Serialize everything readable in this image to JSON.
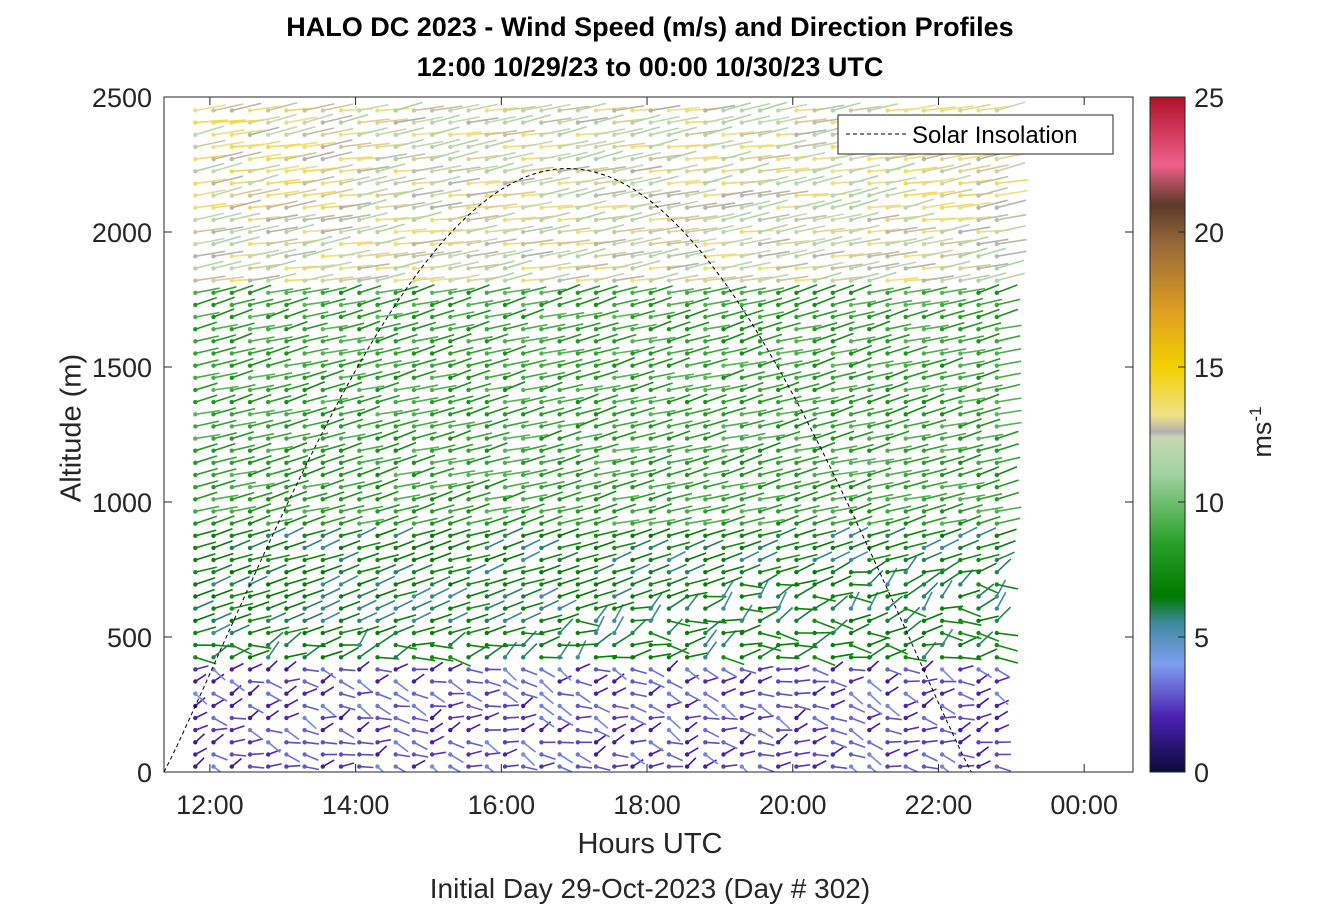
{
  "chart_data": {
    "type": "wind-barb-profile",
    "title_line1": "HALO DC 2023 - Wind Speed (m/s) and Direction Profiles",
    "title_line2": "12:00 10/29/23 to 00:00 10/30/23  UTC",
    "xlabel": "Hours UTC",
    "xsublabel": "Initial Day 29-Oct-2023 (Day # 302)",
    "ylabel": "Altitude (m)",
    "colorbar_label": "ms",
    "colorbar_label_exp": "-1",
    "x_ticks": [
      {
        "hour": 12,
        "label": "12:00"
      },
      {
        "hour": 14,
        "label": "14:00"
      },
      {
        "hour": 16,
        "label": "16:00"
      },
      {
        "hour": 18,
        "label": "18:00"
      },
      {
        "hour": 20,
        "label": "20:00"
      },
      {
        "hour": 22,
        "label": "22:00"
      },
      {
        "hour": 24,
        "label": "00:00"
      }
    ],
    "xlim_hours": [
      11.37,
      24.67
    ],
    "y_ticks": [
      0,
      500,
      1000,
      1500,
      2000,
      2500
    ],
    "ylim": [
      0,
      2500
    ],
    "colorbar_ticks": [
      0,
      5,
      10,
      15,
      20,
      25
    ],
    "colorbar_range": [
      0,
      25
    ],
    "colormap": [
      {
        "v": 0,
        "color": "#0b0b3a"
      },
      {
        "v": 2,
        "color": "#4a1fb0"
      },
      {
        "v": 4,
        "color": "#7f9ff0"
      },
      {
        "v": 5.5,
        "color": "#3f8aa0"
      },
      {
        "v": 6.5,
        "color": "#007a00"
      },
      {
        "v": 8.5,
        "color": "#2aa02a"
      },
      {
        "v": 11,
        "color": "#9fd29f"
      },
      {
        "v": 12.4,
        "color": "#c8d8b0"
      },
      {
        "v": 12.6,
        "color": "#b0b0b0"
      },
      {
        "v": 13.2,
        "color": "#f0e08a"
      },
      {
        "v": 15,
        "color": "#f4d000"
      },
      {
        "v": 17,
        "color": "#e0a020"
      },
      {
        "v": 19.5,
        "color": "#9a6a3a"
      },
      {
        "v": 21,
        "color": "#5a3a2a"
      },
      {
        "v": 22.5,
        "color": "#f0608a"
      },
      {
        "v": 25,
        "color": "#b0102a"
      }
    ],
    "legend": {
      "label": "Solar Insolation",
      "position": "top-right"
    },
    "solar_curve": {
      "rise_hour": 11.37,
      "set_hour": 22.45,
      "peak_hour": 16.85,
      "peak_altitude": 2235,
      "floor_end_hour": 24.67
    },
    "barbs": {
      "start_hour": 11.8,
      "end_hour": 22.85,
      "col_step_hours": 0.25,
      "alt_step_m": 30,
      "rows_per_col": 55,
      "levels": [
        {
          "z_max": 450,
          "speed": 2.6,
          "dir_deg": 270,
          "note": "near-surface layer (west, light)"
        },
        {
          "z_max": 900,
          "speed": 6.5,
          "dir_deg": 250,
          "note": "transition layer"
        },
        {
          "z_max": 1800,
          "speed": 8.5,
          "dir_deg": 255,
          "note": "mid layer (WSW, moderate)"
        },
        {
          "z_max": 2500,
          "speed": 12.5,
          "dir_deg": 260,
          "note": "upper layer"
        }
      ]
    }
  }
}
